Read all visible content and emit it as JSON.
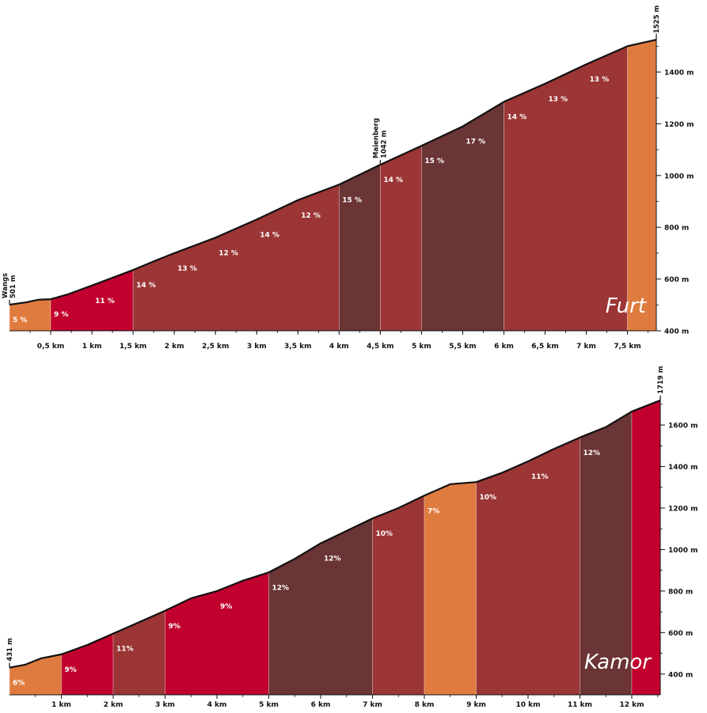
{
  "chart_data": [
    {
      "type": "area",
      "title": "Furt",
      "x_unit": "km",
      "y_unit": "m",
      "xlim": [
        0,
        7.85
      ],
      "ylim": [
        400,
        1550
      ],
      "x_tick_labels": [
        "0,5 km",
        "1 km",
        "1,5 km",
        "2 km",
        "2,5 km",
        "3 km",
        "3,5 km",
        "4 km",
        "4,5 km",
        "5 km",
        "5,5 km",
        "6 km",
        "6,5 km",
        "7 km",
        "7,5 km"
      ],
      "x_ticks": [
        0.5,
        1,
        1.5,
        2,
        2.5,
        3,
        3.5,
        4,
        4.5,
        5,
        5.5,
        6,
        6.5,
        7,
        7.5
      ],
      "y_tick_labels": [
        "400 m",
        "600 m",
        "800 m",
        "1000 m",
        "1200 m",
        "1400 m"
      ],
      "y_ticks": [
        400,
        600,
        800,
        1000,
        1200,
        1400
      ],
      "profile": [
        [
          0,
          501
        ],
        [
          0.2,
          510
        ],
        [
          0.35,
          520
        ],
        [
          0.5,
          522
        ],
        [
          0.7,
          540
        ],
        [
          1,
          575
        ],
        [
          1.5,
          635
        ],
        [
          1.8,
          675
        ],
        [
          2,
          700
        ],
        [
          2.5,
          760
        ],
        [
          3,
          830
        ],
        [
          3.5,
          905
        ],
        [
          4,
          965
        ],
        [
          4.5,
          1042
        ],
        [
          5,
          1115
        ],
        [
          5.5,
          1190
        ],
        [
          6,
          1285
        ],
        [
          6.5,
          1355
        ],
        [
          7,
          1430
        ],
        [
          7.5,
          1500
        ],
        [
          7.85,
          1525
        ]
      ],
      "segments": [
        {
          "from": 0,
          "to": 0.5,
          "grade": "5 %",
          "color": "#e07b3f"
        },
        {
          "from": 0.5,
          "to": 1.5,
          "grade_labels": [
            "9 %",
            "11 %"
          ],
          "color": "#c1002e"
        },
        {
          "from": 1.5,
          "to": 4,
          "grade_labels": [
            "14 %",
            "13 %",
            "12 %",
            "14 %",
            "12 %"
          ],
          "color": "#9c3535"
        },
        {
          "from": 4,
          "to": 4.5,
          "grade": "15 %",
          "color": "#6b3435"
        },
        {
          "from": 4.5,
          "to": 5,
          "grade": "14 %",
          "color": "#9c3535"
        },
        {
          "from": 5,
          "to": 6,
          "grade_labels": [
            "15 %",
            "17 %"
          ],
          "color": "#6b3435"
        },
        {
          "from": 6,
          "to": 7.5,
          "grade_labels": [
            "14 %",
            "13 %",
            "13 %"
          ],
          "color": "#9c3535"
        },
        {
          "from": 7.5,
          "to": 7.85,
          "grade": "",
          "color": "#e07b3f"
        }
      ],
      "markers": [
        {
          "x": 0,
          "elev": 501,
          "name": "Wangs",
          "value": "501 m"
        },
        {
          "x": 4.5,
          "elev": 1042,
          "name": "Maienberg",
          "value": "1042 m"
        },
        {
          "x": 7.85,
          "elev": 1525,
          "name": "",
          "value": "1525 m"
        }
      ]
    },
    {
      "type": "area",
      "title": "Kamor",
      "x_unit": "km",
      "y_unit": "m",
      "xlim": [
        0,
        12.55
      ],
      "ylim": [
        300,
        1730
      ],
      "x_tick_labels": [
        "1 km",
        "2 km",
        "3 km",
        "4 km",
        "5 km",
        "6 km",
        "7 km",
        "8 km",
        "9 km",
        "10 km",
        "11 km",
        "12 km"
      ],
      "x_ticks": [
        1,
        2,
        3,
        4,
        5,
        6,
        7,
        8,
        9,
        10,
        11,
        12
      ],
      "y_tick_labels": [
        "400 m",
        "600 m",
        "800 m",
        "1000 m",
        "1200 m",
        "1400 m",
        "1600 m"
      ],
      "y_ticks": [
        400,
        600,
        800,
        1000,
        1200,
        1400,
        1600
      ],
      "profile": [
        [
          0,
          431
        ],
        [
          0.3,
          445
        ],
        [
          0.6,
          475
        ],
        [
          1,
          495
        ],
        [
          1.5,
          540
        ],
        [
          2,
          595
        ],
        [
          2.5,
          650
        ],
        [
          3,
          705
        ],
        [
          3.5,
          765
        ],
        [
          4,
          800
        ],
        [
          4.5,
          850
        ],
        [
          5,
          890
        ],
        [
          5.5,
          955
        ],
        [
          6,
          1030
        ],
        [
          6.5,
          1090
        ],
        [
          7,
          1150
        ],
        [
          7.5,
          1200
        ],
        [
          8,
          1260
        ],
        [
          8.5,
          1315
        ],
        [
          9,
          1325
        ],
        [
          9.5,
          1370
        ],
        [
          10,
          1425
        ],
        [
          10.5,
          1485
        ],
        [
          11,
          1540
        ],
        [
          11.5,
          1590
        ],
        [
          12,
          1665
        ],
        [
          12.55,
          1719
        ]
      ],
      "segments": [
        {
          "from": 0,
          "to": 1,
          "grade": "6%",
          "color": "#e07b3f"
        },
        {
          "from": 1,
          "to": 2,
          "grade": "9%",
          "color": "#c1002e"
        },
        {
          "from": 2,
          "to": 3,
          "grade": "11%",
          "color": "#9c3535"
        },
        {
          "from": 3,
          "to": 5,
          "grade_labels": [
            "9%",
            "9%"
          ],
          "color": "#c1002e"
        },
        {
          "from": 5,
          "to": 7,
          "grade_labels": [
            "12%",
            "12%"
          ],
          "color": "#6b3435"
        },
        {
          "from": 7,
          "to": 8,
          "grade": "10%",
          "color": "#9c3535"
        },
        {
          "from": 8,
          "to": 9,
          "grade": "7%",
          "color": "#e07b3f"
        },
        {
          "from": 9,
          "to": 11,
          "grade_labels": [
            "10%",
            "11%"
          ],
          "color": "#9c3535"
        },
        {
          "from": 11,
          "to": 12,
          "grade": "12%",
          "color": "#6b3435"
        },
        {
          "from": 12,
          "to": 12.55,
          "grade": "",
          "color": "#c1002e"
        }
      ],
      "markers": [
        {
          "x": 0,
          "elev": 431,
          "name": "",
          "value": "431 m"
        },
        {
          "x": 12.55,
          "elev": 1719,
          "name": "",
          "value": "1719 m"
        }
      ]
    }
  ]
}
